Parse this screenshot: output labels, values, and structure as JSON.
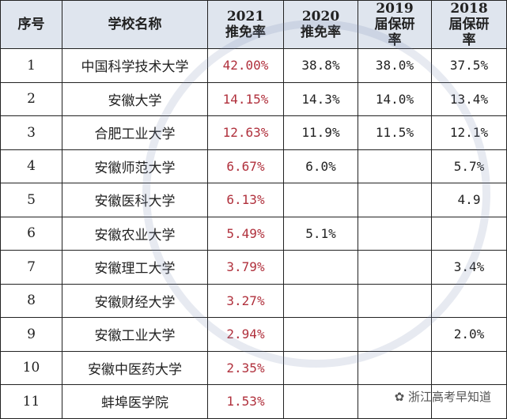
{
  "headers": [
    "序号",
    "学校名称",
    "2021推免率",
    "2020推免率",
    "2019届保研率",
    "2018届保研率"
  ],
  "rows": [
    [
      "1",
      "中国科学技术大学",
      "42.00%",
      "38.8%",
      "38.0%",
      "37.5%"
    ],
    [
      "2",
      "安徽大学",
      "14.15%",
      "14.3%",
      "14.0%",
      "13.4%"
    ],
    [
      "3",
      "合肥工业大学",
      "12.63%",
      "11.9%",
      "11.5%",
      "12.1%"
    ],
    [
      "4",
      "安徽师范大学",
      "6.67%",
      "6.0%",
      "",
      "5.7%"
    ],
    [
      "5",
      "安徽医科大学",
      "6.13%",
      "",
      "",
      "4.9"
    ],
    [
      "6",
      "安徽农业大学",
      "5.49%",
      "5.1%",
      "",
      ""
    ],
    [
      "7",
      "安徽理工大学",
      "3.79%",
      "",
      "",
      "3.4%"
    ],
    [
      "8",
      "安徽财经大学",
      "3.27%",
      "",
      "",
      ""
    ],
    [
      "9",
      "安徽工业大学",
      "2.94%",
      "",
      "",
      "2.0%"
    ],
    [
      "10",
      "安徽中医药大学",
      "2.35%",
      "",
      "",
      ""
    ],
    [
      "11",
      "蚌埠医学院",
      "1.53%",
      "",
      "",
      ""
    ]
  ],
  "watermark": "浙江高考早知道",
  "colors": {
    "header_bg": "#dfe5ee",
    "highlight": "#b0303c"
  }
}
